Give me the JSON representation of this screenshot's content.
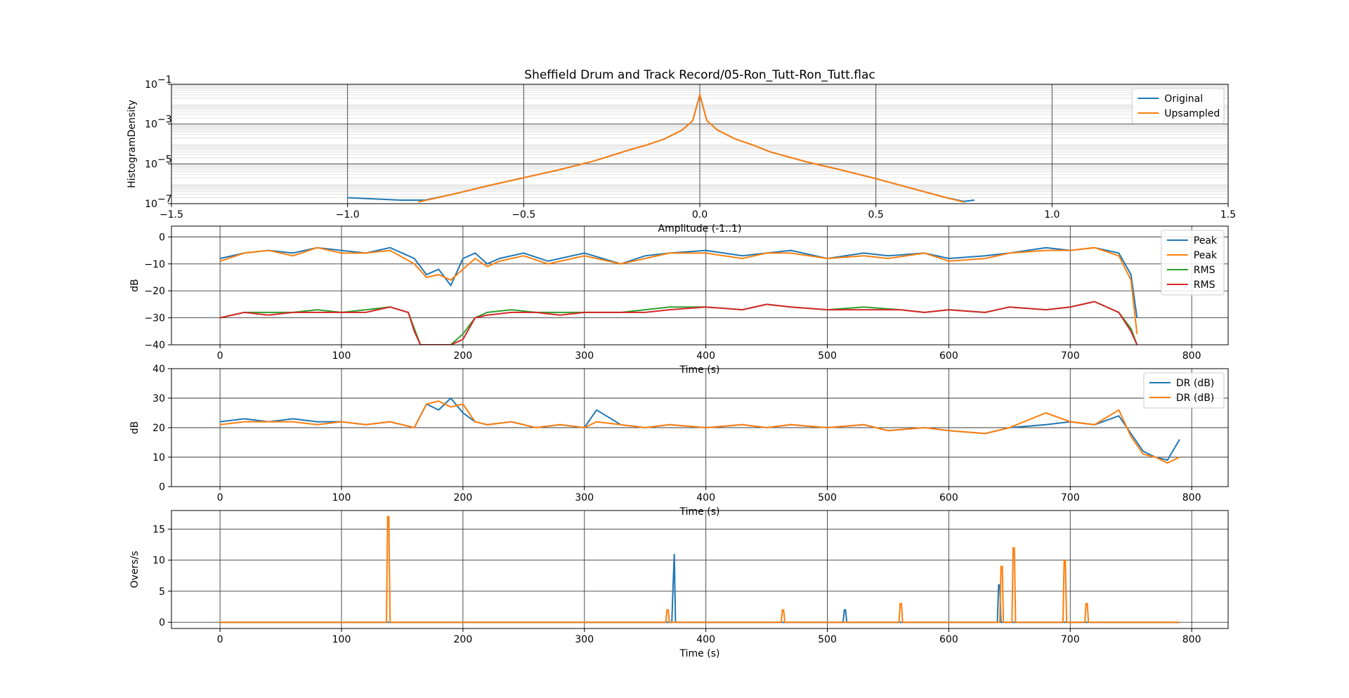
{
  "chart_data": [
    {
      "type": "line",
      "title": "Sheffield Drum and Track Record/05-Ron_Tutt-Ron_Tutt.flac",
      "xlabel": "Amplitude (-1..1)",
      "ylabel": "HistogramDensity",
      "xlim": [
        -1.5,
        1.5
      ],
      "ylim": [
        1e-07,
        0.1
      ],
      "yscale": "log",
      "x_ticks": [
        "−1.5",
        "−1.0",
        "−0.5",
        "0.0",
        "0.5",
        "1.0",
        "1.5"
      ],
      "y_ticks": [
        {
          "base": "10",
          "exp": "−7"
        },
        {
          "base": "10",
          "exp": "−5"
        },
        {
          "base": "10",
          "exp": "−3"
        },
        {
          "base": "10",
          "exp": "−1"
        }
      ],
      "grid": true,
      "legend": "top-right",
      "series": [
        {
          "name": "Original",
          "color": "#1f77b4",
          "x": [
            -1.0,
            -0.85,
            -0.78,
            -0.7,
            -0.6,
            -0.5,
            -0.4,
            -0.3,
            -0.2,
            -0.15,
            -0.1,
            -0.05,
            -0.02,
            0.0,
            0.02,
            0.05,
            0.1,
            0.15,
            0.2,
            0.3,
            0.4,
            0.5,
            0.6,
            0.7,
            0.75,
            0.78
          ],
          "y": [
            2e-07,
            1.5e-07,
            1.5e-07,
            3e-07,
            8e-07,
            2e-06,
            5e-06,
            1.4e-05,
            5e-05,
            9e-05,
            0.00018,
            0.0005,
            0.0015,
            0.03,
            0.0015,
            0.0005,
            0.00018,
            9e-05,
            4e-05,
            1.3e-05,
            5e-06,
            1.8e-06,
            6e-07,
            2e-07,
            1.3e-07,
            1.5e-07
          ]
        },
        {
          "name": "Upsampled",
          "color": "#ff7f0e",
          "x": [
            -0.8,
            -0.7,
            -0.6,
            -0.5,
            -0.4,
            -0.3,
            -0.2,
            -0.15,
            -0.1,
            -0.05,
            -0.02,
            0.0,
            0.02,
            0.05,
            0.1,
            0.15,
            0.2,
            0.3,
            0.4,
            0.5,
            0.6,
            0.7,
            0.75
          ],
          "y": [
            1.2e-07,
            3e-07,
            8e-07,
            2e-06,
            5e-06,
            1.4e-05,
            5e-05,
            9e-05,
            0.00018,
            0.0005,
            0.0015,
            0.03,
            0.0015,
            0.0005,
            0.00018,
            9e-05,
            4e-05,
            1.3e-05,
            5e-06,
            1.8e-06,
            6e-07,
            2e-07,
            1.2e-07
          ]
        }
      ]
    },
    {
      "type": "line",
      "xlabel": "Time (s)",
      "ylabel": "dB",
      "xlim": [
        -40,
        830
      ],
      "ylim": [
        -40,
        4
      ],
      "x_ticks": [
        "0",
        "100",
        "200",
        "300",
        "400",
        "500",
        "600",
        "700",
        "800"
      ],
      "y_ticks": [
        "−40",
        "−30",
        "−20",
        "−10",
        "0"
      ],
      "grid": true,
      "legend": "top-right",
      "series": [
        {
          "name": "Peak",
          "color": "#1f77b4",
          "x": [
            0,
            20,
            40,
            60,
            80,
            100,
            120,
            140,
            160,
            170,
            180,
            190,
            200,
            210,
            220,
            230,
            250,
            270,
            300,
            330,
            350,
            370,
            400,
            430,
            450,
            470,
            500,
            530,
            550,
            580,
            600,
            630,
            650,
            680,
            700,
            720,
            740,
            750,
            755
          ],
          "y": [
            -8,
            -6,
            -5,
            -6,
            -4,
            -5,
            -6,
            -4,
            -8,
            -14,
            -12,
            -18,
            -8,
            -6,
            -10,
            -8,
            -6,
            -9,
            -6,
            -10,
            -7,
            -6,
            -5,
            -7,
            -6,
            -5,
            -8,
            -6,
            -7,
            -6,
            -8,
            -7,
            -6,
            -4,
            -5,
            -4,
            -6,
            -14,
            -30
          ]
        },
        {
          "name": "Peak",
          "color": "#ff7f0e",
          "x": [
            0,
            20,
            40,
            60,
            80,
            100,
            120,
            140,
            160,
            170,
            180,
            190,
            200,
            210,
            220,
            230,
            250,
            270,
            300,
            330,
            350,
            370,
            400,
            430,
            450,
            470,
            500,
            530,
            550,
            580,
            600,
            630,
            650,
            680,
            700,
            720,
            740,
            750,
            755
          ],
          "y": [
            -9,
            -6,
            -5,
            -7,
            -4,
            -6,
            -6,
            -5,
            -10,
            -15,
            -14,
            -16,
            -12,
            -8,
            -11,
            -9,
            -7,
            -10,
            -7,
            -10,
            -8,
            -6,
            -6,
            -8,
            -6,
            -6,
            -8,
            -7,
            -8,
            -6,
            -9,
            -8,
            -6,
            -5,
            -5,
            -4,
            -7,
            -16,
            -36
          ]
        },
        {
          "name": "RMS",
          "color": "#2ca02c",
          "x": [
            0,
            20,
            40,
            60,
            80,
            100,
            120,
            140,
            155,
            160,
            165,
            190,
            200,
            210,
            220,
            240,
            260,
            280,
            300,
            330,
            350,
            370,
            400,
            430,
            450,
            470,
            500,
            530,
            560,
            580,
            600,
            630,
            650,
            680,
            700,
            720,
            740,
            750,
            755
          ],
          "y": [
            -30,
            -28,
            -28,
            -28,
            -27,
            -28,
            -27,
            -26,
            -28,
            -34,
            -40,
            -40,
            -36,
            -30,
            -28,
            -27,
            -28,
            -28,
            -28,
            -28,
            -27,
            -26,
            -26,
            -27,
            -25,
            -26,
            -27,
            -26,
            -27,
            -28,
            -27,
            -28,
            -26,
            -27,
            -26,
            -24,
            -28,
            -34,
            -40
          ]
        },
        {
          "name": "RMS",
          "color": "#d62728",
          "x": [
            0,
            20,
            40,
            60,
            80,
            100,
            120,
            140,
            155,
            160,
            165,
            190,
            200,
            210,
            220,
            240,
            260,
            280,
            300,
            330,
            350,
            370,
            400,
            430,
            450,
            470,
            500,
            530,
            560,
            580,
            600,
            630,
            650,
            680,
            700,
            720,
            740,
            750,
            755
          ],
          "y": [
            -30,
            -28,
            -29,
            -28,
            -28,
            -28,
            -28,
            -26,
            -28,
            -35,
            -40,
            -40,
            -38,
            -30,
            -29,
            -28,
            -28,
            -29,
            -28,
            -28,
            -28,
            -27,
            -26,
            -27,
            -25,
            -26,
            -27,
            -27,
            -27,
            -28,
            -27,
            -28,
            -26,
            -27,
            -26,
            -24,
            -28,
            -35,
            -40
          ]
        }
      ]
    },
    {
      "type": "line",
      "xlabel": "Time (s)",
      "ylabel": "dB",
      "xlim": [
        -40,
        830
      ],
      "ylim": [
        0,
        40
      ],
      "x_ticks": [
        "0",
        "100",
        "200",
        "300",
        "400",
        "500",
        "600",
        "700",
        "800"
      ],
      "y_ticks": [
        "0",
        "10",
        "20",
        "30",
        "40"
      ],
      "grid": true,
      "legend": "top-right",
      "series": [
        {
          "name": "DR (dB)",
          "color": "#1f77b4",
          "x": [
            0,
            20,
            40,
            60,
            80,
            100,
            120,
            140,
            160,
            170,
            180,
            190,
            200,
            210,
            220,
            240,
            260,
            280,
            300,
            310,
            330,
            350,
            370,
            400,
            430,
            450,
            470,
            500,
            530,
            550,
            580,
            600,
            630,
            650,
            680,
            700,
            720,
            740,
            750,
            760,
            770,
            780,
            790
          ],
          "y": [
            22,
            23,
            22,
            23,
            22,
            22,
            21,
            22,
            20,
            28,
            26,
            30,
            25,
            22,
            21,
            22,
            20,
            21,
            20,
            26,
            21,
            20,
            21,
            20,
            21,
            20,
            21,
            20,
            21,
            19,
            20,
            19,
            18,
            20,
            21,
            22,
            21,
            24,
            18,
            12,
            10,
            9,
            16
          ]
        },
        {
          "name": "DR (dB)",
          "color": "#ff7f0e",
          "x": [
            0,
            20,
            40,
            60,
            80,
            100,
            120,
            140,
            160,
            170,
            180,
            190,
            200,
            210,
            220,
            240,
            260,
            280,
            300,
            310,
            330,
            350,
            370,
            400,
            430,
            450,
            470,
            500,
            530,
            550,
            580,
            600,
            630,
            650,
            680,
            700,
            720,
            740,
            750,
            760,
            770,
            780,
            790
          ],
          "y": [
            21,
            22,
            22,
            22,
            21,
            22,
            21,
            22,
            20,
            28,
            29,
            27,
            28,
            22,
            21,
            22,
            20,
            21,
            20,
            22,
            21,
            20,
            21,
            20,
            21,
            20,
            21,
            20,
            21,
            19,
            20,
            19,
            18,
            20,
            25,
            22,
            21,
            26,
            17,
            11,
            10,
            8,
            10
          ]
        }
      ]
    },
    {
      "type": "line",
      "xlabel": "Time (s)",
      "ylabel": "Overs/s",
      "xlim": [
        -40,
        830
      ],
      "ylim": [
        -1,
        18
      ],
      "x_ticks": [
        "0",
        "100",
        "200",
        "300",
        "400",
        "500",
        "600",
        "700",
        "800"
      ],
      "y_ticks": [
        "0",
        "5",
        "10",
        "15"
      ],
      "grid": true,
      "series": [
        {
          "name": "",
          "color": "#1f77b4",
          "x": [
            0,
            372,
            373,
            374,
            375,
            513,
            514,
            515,
            516,
            640,
            641,
            642,
            643,
            790
          ],
          "y": [
            0,
            0,
            6,
            11,
            0,
            0,
            2,
            2,
            0,
            0,
            6,
            6,
            0,
            0
          ]
        },
        {
          "name": "",
          "color": "#ff7f0e",
          "x": [
            0,
            137,
            138,
            139,
            140,
            367,
            368,
            369,
            370,
            462,
            463,
            464,
            465,
            559,
            560,
            561,
            562,
            642,
            643,
            644,
            645,
            652,
            653,
            654,
            655,
            694,
            695,
            696,
            697,
            712,
            713,
            714,
            715,
            790
          ],
          "y": [
            0,
            0,
            17,
            17,
            0,
            0,
            2,
            2,
            0,
            0,
            2,
            2,
            0,
            0,
            3,
            3,
            0,
            0,
            9,
            9,
            0,
            0,
            12,
            12,
            0,
            0,
            10,
            10,
            0,
            0,
            3,
            3,
            0,
            0
          ]
        }
      ]
    }
  ]
}
